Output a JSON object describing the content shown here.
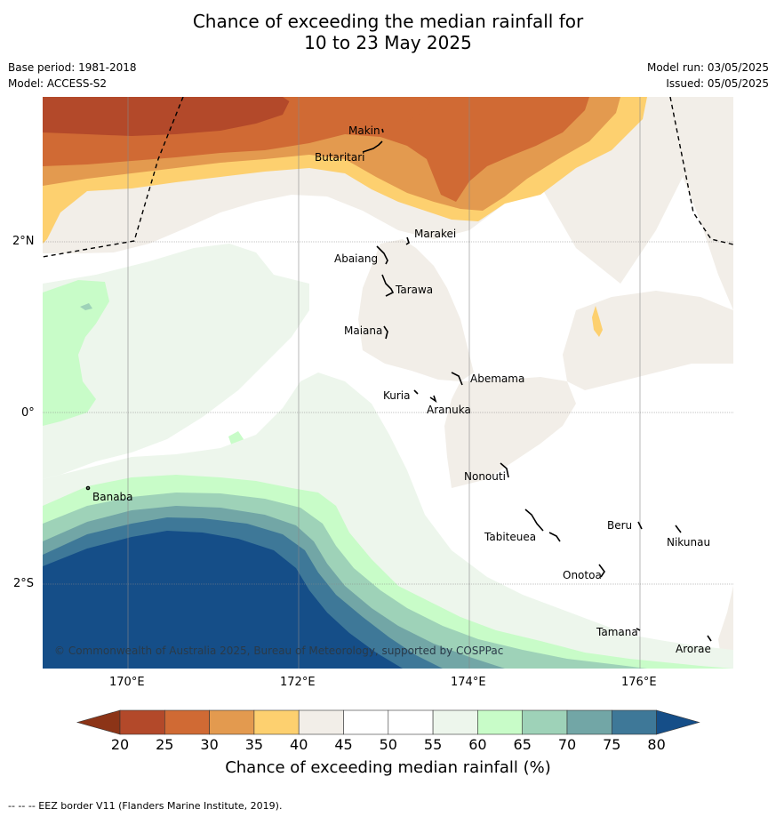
{
  "title": {
    "line1": "Chance of exceeding the median rainfall for",
    "line2": "10 to 23 May 2025"
  },
  "meta": {
    "base_period": "Base period: 1981-2018",
    "model": "Model: ACCESS-S2",
    "model_run": "Model run: 03/05/2025",
    "issued": "Issued: 05/05/2025"
  },
  "map": {
    "lat_labels": [
      "2°N",
      "0°",
      "2°S"
    ],
    "lon_labels": [
      "170°E",
      "172°E",
      "174°E",
      "176°E"
    ],
    "places": [
      "Makin",
      "Butaritari",
      "Marakei",
      "Abaiang",
      "Tarawa",
      "Maiana",
      "Abemama",
      "Kuria",
      "Aranuka",
      "Nonouti",
      "Banaba",
      "Tabiteuea",
      "Beru",
      "Nikunau",
      "Onotoa",
      "Tamana",
      "Arorae"
    ],
    "copyright": "© Commonwealth of Australia 2025, Bureau of Meteorology, supported by COSPPac"
  },
  "colorbar": {
    "title": "Chance of exceeding median rainfall (%)",
    "ticks": [
      "20",
      "25",
      "30",
      "35",
      "40",
      "45",
      "50",
      "55",
      "60",
      "65",
      "70",
      "75",
      "80"
    ],
    "colors": [
      "#8c3417",
      "#b3492a",
      "#d06a34",
      "#e39a4f",
      "#fdd06f",
      "#f2eee8",
      "#ffffff",
      "#ffffff",
      "#edf6ec",
      "#c8fcc8",
      "#9ed2b8",
      "#72a6a6",
      "#3e7898",
      "#154e88"
    ]
  },
  "footer": {
    "eez_note": "--  --  -- EEZ border V11 (Flanders Marine Institute, 2019)."
  }
}
